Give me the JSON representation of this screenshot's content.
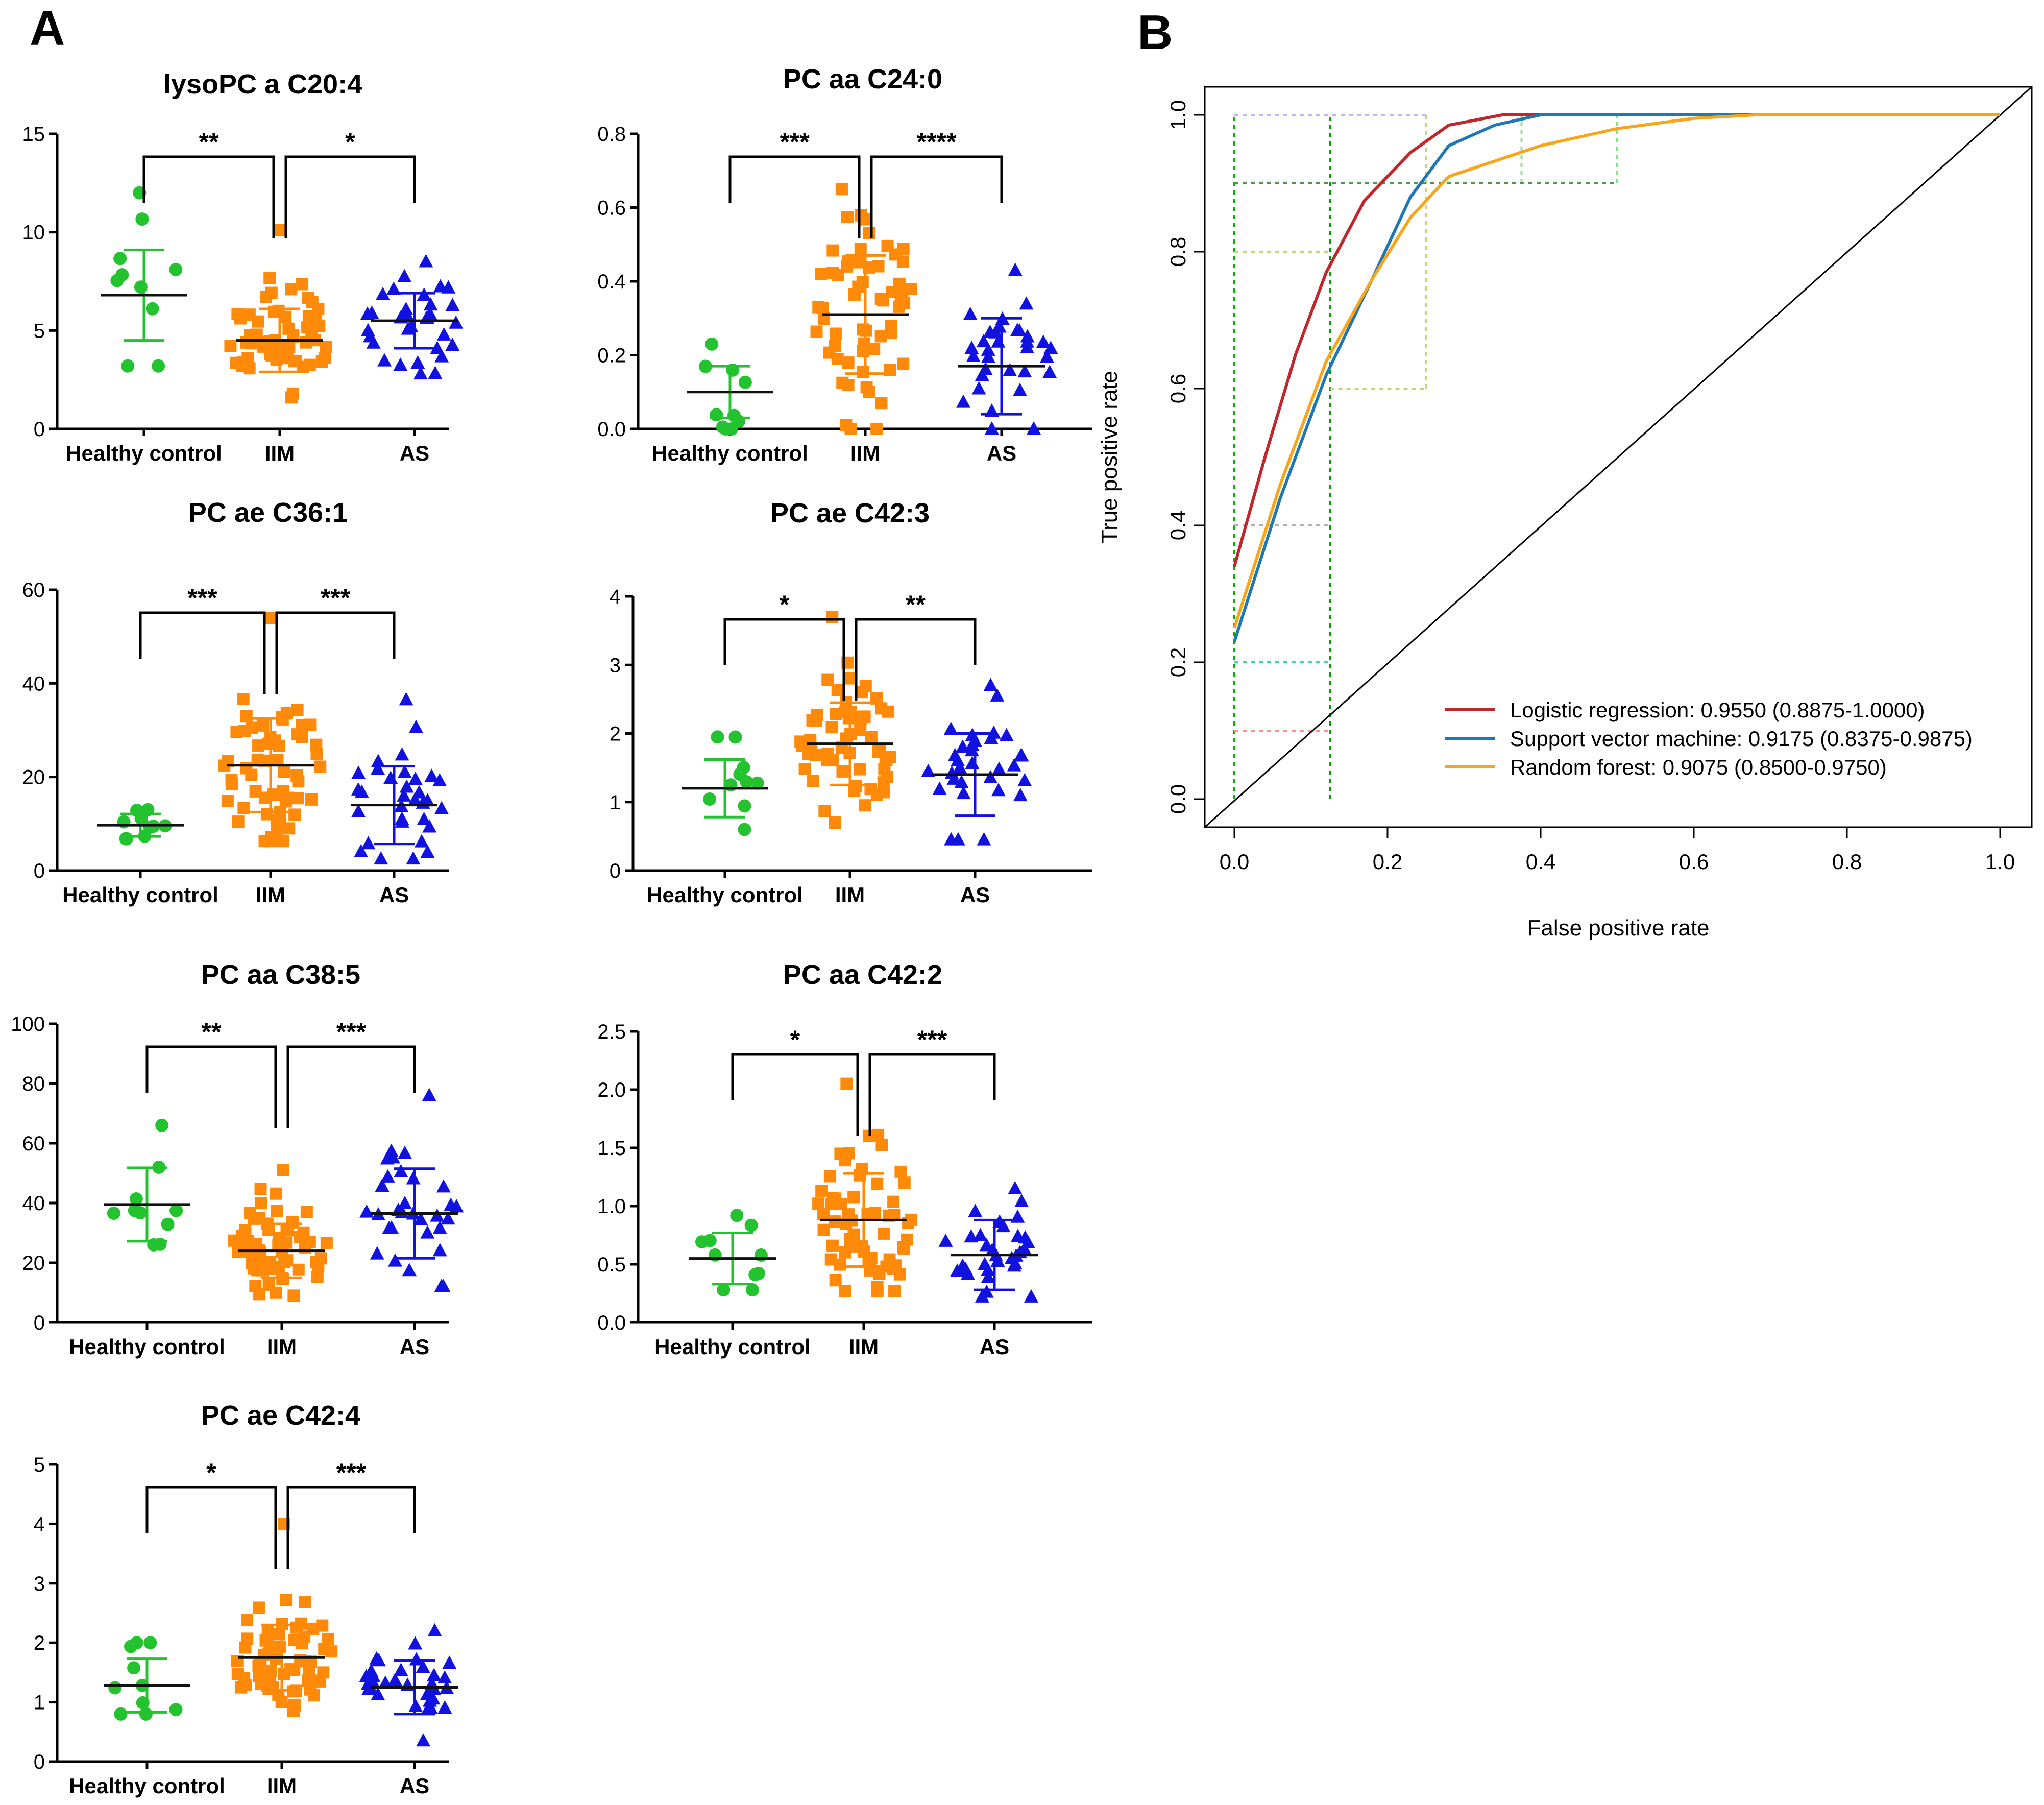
{
  "panel_labels": {
    "a": "A",
    "b": "B"
  },
  "colors": {
    "healthy": "#22c32e",
    "iim": "#ff8a0a",
    "as": "#1212e0",
    "logistic": "#c0272d",
    "svm": "#1f78b4",
    "rf": "#f9a51a"
  },
  "chart_data": [
    {
      "type": "scatter",
      "title": "lysoPC a C20:4",
      "categories": [
        "Healthy control",
        "IIM",
        "AS"
      ],
      "ylim": [
        0,
        15
      ],
      "yticks": [
        "0",
        "5",
        "10",
        "15"
      ],
      "significance": [
        "**",
        "*"
      ],
      "groups": [
        {
          "name": "Healthy control",
          "mean": 6.8,
          "sd": 2.3,
          "n": 10,
          "min": 3.2,
          "max": 12.0
        },
        {
          "name": "IIM",
          "mean": 4.5,
          "sd": 1.6,
          "n": 60,
          "min": 1.6,
          "max": 10.1
        },
        {
          "name": "AS",
          "mean": 5.5,
          "sd": 1.4,
          "n": 32,
          "min": 2.8,
          "max": 8.5
        }
      ]
    },
    {
      "type": "scatter",
      "title": "PC aa C24:0",
      "categories": [
        "Healthy control",
        "IIM",
        "AS"
      ],
      "ylim": [
        0,
        0.8
      ],
      "yticks": [
        "0.0",
        "0.2",
        "0.4",
        "0.6",
        "0.8"
      ],
      "significance": [
        "***",
        "****"
      ],
      "groups": [
        {
          "name": "Healthy control",
          "mean": 0.1,
          "sd": 0.07,
          "n": 10,
          "min": 0.0,
          "max": 0.23
        },
        {
          "name": "IIM",
          "mean": 0.31,
          "sd": 0.16,
          "n": 60,
          "min": 0.0,
          "max": 0.65
        },
        {
          "name": "AS",
          "mean": 0.17,
          "sd": 0.13,
          "n": 32,
          "min": 0.0,
          "max": 0.43
        }
      ]
    },
    {
      "type": "scatter",
      "title": "PC ae C36:1",
      "categories": [
        "Healthy control",
        "IIM",
        "AS"
      ],
      "ylim": [
        0,
        60
      ],
      "yticks": [
        "0",
        "20",
        "40",
        "60"
      ],
      "significance": [
        "***",
        "***"
      ],
      "groups": [
        {
          "name": "Healthy control",
          "mean": 9.7,
          "sd": 2.4,
          "n": 10,
          "min": 6.8,
          "max": 13.0
        },
        {
          "name": "IIM",
          "mean": 22.5,
          "sd": 10.0,
          "n": 60,
          "min": 6.3,
          "max": 54.0
        },
        {
          "name": "AS",
          "mean": 14.0,
          "sd": 8.3,
          "n": 32,
          "min": 2.5,
          "max": 36.5
        }
      ]
    },
    {
      "type": "scatter",
      "title": "PC ae C42:3",
      "categories": [
        "Healthy control",
        "IIM",
        "AS"
      ],
      "ylim": [
        0,
        4
      ],
      "yticks": [
        "0",
        "1",
        "2",
        "3",
        "4"
      ],
      "significance": [
        "*",
        "**"
      ],
      "groups": [
        {
          "name": "Healthy control",
          "mean": 1.2,
          "sd": 0.42,
          "n": 10,
          "min": 0.6,
          "max": 1.95
        },
        {
          "name": "IIM",
          "mean": 1.85,
          "sd": 0.6,
          "n": 60,
          "min": 0.7,
          "max": 3.7
        },
        {
          "name": "AS",
          "mean": 1.4,
          "sd": 0.6,
          "n": 32,
          "min": 0.45,
          "max": 2.7
        }
      ]
    },
    {
      "type": "scatter",
      "title": "PC aa C38:5",
      "categories": [
        "Healthy control",
        "IIM",
        "AS"
      ],
      "ylim": [
        0,
        100
      ],
      "yticks": [
        "0",
        "20",
        "40",
        "60",
        "80",
        "100"
      ],
      "significance": [
        "**",
        "***"
      ],
      "groups": [
        {
          "name": "Healthy control",
          "mean": 39.5,
          "sd": 12.3,
          "n": 10,
          "min": 26.0,
          "max": 66.0
        },
        {
          "name": "IIM",
          "mean": 24.0,
          "sd": 9.0,
          "n": 60,
          "min": 9.0,
          "max": 51.0
        },
        {
          "name": "AS",
          "mean": 36.5,
          "sd": 15.0,
          "n": 32,
          "min": 12.0,
          "max": 76.0
        }
      ]
    },
    {
      "type": "scatter",
      "title": "PC aa C42:2",
      "categories": [
        "Healthy control",
        "IIM",
        "AS"
      ],
      "ylim": [
        0,
        2.5
      ],
      "yticks": [
        "0.0",
        "0.5",
        "1.0",
        "1.5",
        "2.0",
        "2.5"
      ],
      "significance": [
        "*",
        "***"
      ],
      "groups": [
        {
          "name": "Healthy control",
          "mean": 0.55,
          "sd": 0.22,
          "n": 10,
          "min": 0.28,
          "max": 0.92
        },
        {
          "name": "IIM",
          "mean": 0.88,
          "sd": 0.4,
          "n": 60,
          "min": 0.27,
          "max": 2.05
        },
        {
          "name": "AS",
          "mean": 0.58,
          "sd": 0.3,
          "n": 32,
          "min": 0.22,
          "max": 1.15
        }
      ]
    },
    {
      "type": "scatter",
      "title": "PC ae C42:4",
      "categories": [
        "Healthy control",
        "IIM",
        "AS"
      ],
      "ylim": [
        0,
        5
      ],
      "yticks": [
        "0",
        "1",
        "2",
        "3",
        "4",
        "5"
      ],
      "significance": [
        "*",
        "***"
      ],
      "groups": [
        {
          "name": "Healthy control",
          "mean": 1.28,
          "sd": 0.45,
          "n": 10,
          "min": 0.8,
          "max": 2.0
        },
        {
          "name": "IIM",
          "mean": 1.75,
          "sd": 0.55,
          "n": 60,
          "min": 0.85,
          "max": 4.0
        },
        {
          "name": "AS",
          "mean": 1.25,
          "sd": 0.45,
          "n": 32,
          "min": 0.35,
          "max": 2.2
        }
      ]
    },
    {
      "type": "line",
      "xlabel": "False positive rate",
      "ylabel": "True positive rate",
      "xlim": [
        0,
        1
      ],
      "ylim": [
        0,
        1
      ],
      "xticks": [
        "0.0",
        "0.2",
        "0.4",
        "0.6",
        "0.8",
        "1.0"
      ],
      "yticks": [
        "0.0",
        "0.2",
        "0.4",
        "0.6",
        "0.8",
        "1.0"
      ],
      "legend_position": "bottom-right",
      "series": [
        {
          "name": "Logistic regression",
          "legend": "Logistic regression: 0.9550 (0.8875-1.0000)",
          "x": [
            0,
            0.04,
            0.08,
            0.12,
            0.17,
            0.23,
            0.28,
            0.35,
            0.4,
            1.0
          ],
          "y": [
            0.34,
            0.5,
            0.65,
            0.77,
            0.875,
            0.945,
            0.985,
            1.0,
            1.0,
            1.0
          ]
        },
        {
          "name": "Support vector machine",
          "legend": "Support vector machine: 0.9175 (0.8375-0.9875)",
          "x": [
            0,
            0.06,
            0.12,
            0.18,
            0.23,
            0.28,
            0.34,
            0.4,
            1.0
          ],
          "y": [
            0.23,
            0.44,
            0.62,
            0.76,
            0.88,
            0.955,
            0.985,
            1.0,
            1.0
          ]
        },
        {
          "name": "Random forest",
          "legend": "Random forest: 0.9075 (0.8500-0.9750)",
          "x": [
            0,
            0.06,
            0.12,
            0.18,
            0.23,
            0.28,
            0.4,
            0.5,
            0.6,
            0.68,
            1.0
          ],
          "y": [
            0.25,
            0.46,
            0.64,
            0.76,
            0.85,
            0.91,
            0.955,
            0.98,
            0.995,
            1.0,
            1.0
          ]
        }
      ],
      "reference_lines": [
        {
          "x": 0.0,
          "y1": 0.0,
          "y2": 1.0,
          "color": "#00b400"
        },
        {
          "x": 0.125,
          "y1": 0.0,
          "y2": 1.0,
          "color": "#00a000"
        },
        {
          "x": 0.25,
          "y1": 0.6,
          "y2": 1.0,
          "color": "#c8d27a"
        },
        {
          "x": 0.375,
          "y1": 0.9,
          "y2": 1.0,
          "color": "#9ad8a8"
        },
        {
          "x": 0.5,
          "y1": 0.9,
          "y2": 1.0,
          "color": "#80e880"
        },
        {
          "y": 1.0,
          "x1": 0.0,
          "x2": 0.25,
          "color": "#b9b9ff"
        },
        {
          "y": 0.9,
          "x1": 0.0,
          "x2": 0.5,
          "color": "#4a9a4a"
        },
        {
          "y": 0.8,
          "x1": 0.0,
          "x2": 0.125,
          "color": "#c8d27a"
        },
        {
          "y": 0.6,
          "x1": 0.125,
          "x2": 0.25,
          "color": "#c8d27a"
        },
        {
          "y": 0.4,
          "x1": 0.0,
          "x2": 0.125,
          "color": "#b0b0b0"
        },
        {
          "y": 0.2,
          "x1": 0.0,
          "x2": 0.125,
          "color": "#30e0b0"
        },
        {
          "y": 0.1,
          "x1": 0.0,
          "x2": 0.125,
          "color": "#ff9090"
        }
      ]
    }
  ]
}
